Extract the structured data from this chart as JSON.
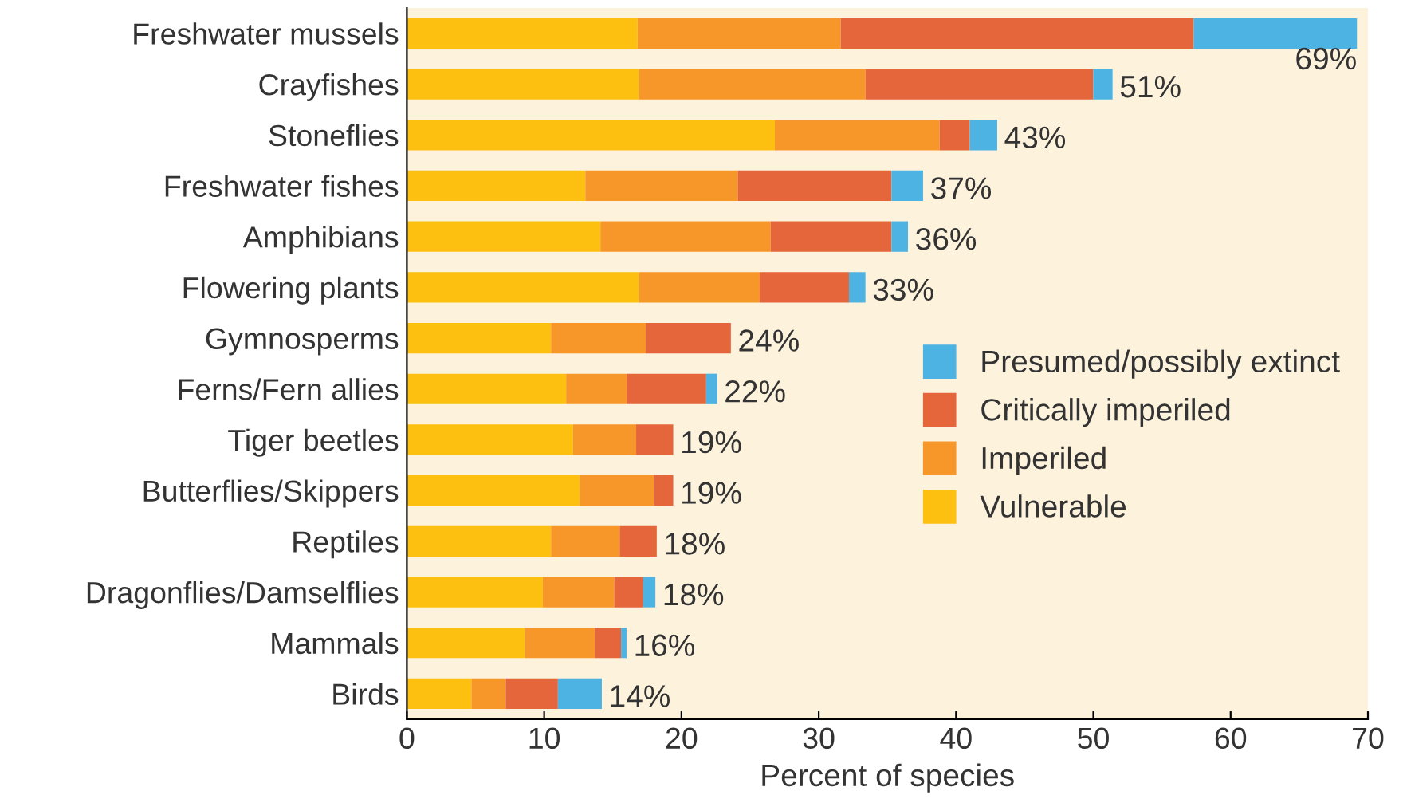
{
  "chart_data": {
    "type": "bar",
    "orientation": "horizontal",
    "stacked": true,
    "xlabel": "Percent of species",
    "categories": [
      "Freshwater mussels",
      "Crayfishes",
      "Stoneflies",
      "Freshwater fishes",
      "Amphibians",
      "Flowering plants",
      "Gymnosperms",
      "Ferns/Fern allies",
      "Tiger beetles",
      "Butterflies/Skippers",
      "Reptiles",
      "Dragonflies/Damselflies",
      "Mammals",
      "Birds"
    ],
    "series": [
      {
        "name": "Vulnerable",
        "color": "#fdc010",
        "values": [
          16.8,
          16.9,
          26.8,
          13.0,
          14.1,
          16.9,
          10.5,
          11.6,
          12.1,
          12.6,
          10.5,
          9.9,
          8.6,
          4.7
        ]
      },
      {
        "name": "Imperiled",
        "color": "#f7972a",
        "values": [
          14.8,
          16.5,
          12.0,
          11.1,
          12.4,
          8.8,
          6.9,
          4.4,
          4.6,
          5.4,
          5.0,
          5.2,
          5.1,
          2.5
        ]
      },
      {
        "name": "Critically imperiled",
        "color": "#e4663a",
        "values": [
          25.7,
          16.6,
          2.2,
          11.2,
          8.8,
          6.5,
          6.2,
          5.8,
          2.7,
          1.4,
          2.7,
          2.1,
          1.9,
          3.8
        ]
      },
      {
        "name": "Presumed/possibly extinct",
        "color": "#4db3e3",
        "values": [
          11.9,
          1.4,
          2.0,
          2.3,
          1.2,
          1.2,
          0,
          0.8,
          0,
          0,
          0,
          0.9,
          0.4,
          3.2
        ]
      }
    ],
    "totals": [
      "69%",
      "51%",
      "43%",
      "37%",
      "36%",
      "33%",
      "24%",
      "22%",
      "19%",
      "19%",
      "18%",
      "18%",
      "16%",
      "14%"
    ],
    "xlim": [
      0,
      70
    ],
    "xticks": [
      0,
      10,
      20,
      30,
      40,
      50,
      60,
      70
    ],
    "grid": false,
    "legend": "right"
  }
}
